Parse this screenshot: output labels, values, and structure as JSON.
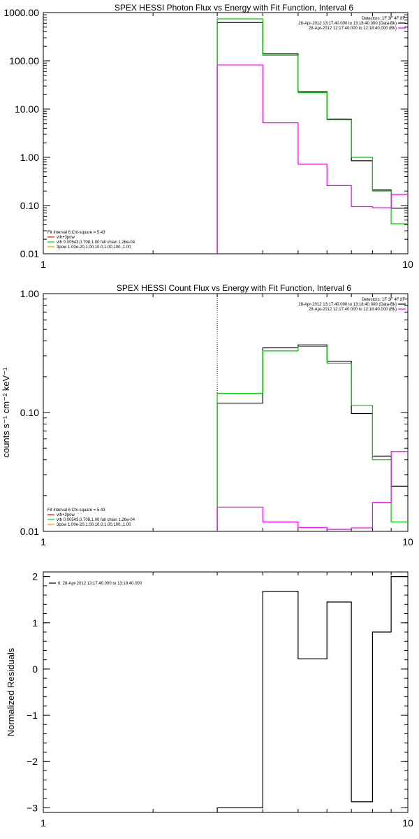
{
  "chart_data": [
    {
      "type": "line",
      "title": "SPEX HESSI Photon Flux vs Energy with Fit Function, Interval 6",
      "ylabel": "",
      "xscale": "log",
      "yscale": "log",
      "xlim": [
        1,
        10
      ],
      "ylim": [
        0.01,
        1000
      ],
      "x_ticks": [
        "1",
        "10"
      ],
      "y_ticks": [
        "0.01",
        "0.10",
        "1.00",
        "10.00",
        "100.00",
        "1000.00"
      ],
      "vline_x": 3.0,
      "legend_top_right": [
        {
          "text": "Detectors: 1F 3F 4F 8F",
          "color": ""
        },
        {
          "text": "28-Apr-2012 13:17:40.000 to 13:18:40.000 (Data-Bk)",
          "color": "#000000"
        },
        {
          "text": "28-Apr-2012 12:17:40.000 to 12:18:40.000 (Bk)",
          "color": "#ff00ff"
        }
      ],
      "legend_bottom_left": [
        {
          "text": "Fit Interval 6   Chi-square = 5.43",
          "color": ""
        },
        {
          "text": "vth+3pow",
          "color": "#ff0000"
        },
        {
          "text": "vth 0.00543,0.708,1.00  full chian 1.26e-04",
          "color": "#00dd00"
        },
        {
          "text": "3pow 1.00e-20,1.00,10.0,1.00,100.,1.00",
          "color": "#ff9900"
        }
      ],
      "bin_edges": [
        3.0,
        4.0,
        5.0,
        6.0,
        7.0,
        8.0,
        9.0,
        10.0
      ],
      "series": [
        {
          "name": "28-Apr-2012 13:17:40.000 to 13:18:40.000 (Data-Bk)",
          "color": "#000000",
          "values": [
            620,
            140,
            23,
            6.2,
            0.85,
            0.21,
            0.088
          ]
        },
        {
          "name": "",
          "color": "#00cc00",
          "values": [
            740,
            130,
            22,
            6.0,
            1.0,
            0.2,
            0.042
          ]
        },
        {
          "name": "28-Apr-2012 12:17:40.000 to 12:18:40.000 (Bk)",
          "color": "#ff00ff",
          "values": [
            82,
            5.2,
            0.72,
            0.26,
            0.095,
            0.09,
            0.17
          ]
        }
      ]
    },
    {
      "type": "line",
      "title": "SPEX HESSI Count Flux vs Energy with Fit Function, Interval 6",
      "ylabel": "counts s⁻¹ cm⁻² keV⁻¹",
      "xscale": "log",
      "yscale": "log",
      "xlim": [
        1,
        10
      ],
      "ylim": [
        0.01,
        1.0
      ],
      "x_ticks": [
        "1",
        "10"
      ],
      "y_ticks": [
        "0.01",
        "0.10",
        "1.00"
      ],
      "vline_x": 3.0,
      "legend_top_right": [
        {
          "text": "Detectors: 1F 3F 4F 8F",
          "color": ""
        },
        {
          "text": "28-Apr-2012 13:17:40.000 to 13:18:40.000 (Data-Bk)",
          "color": "#000000"
        },
        {
          "text": "28-Apr-2012 12:17:40.000 to 12:18:40.000 (Bk)",
          "color": "#ff00ff"
        }
      ],
      "legend_bottom_left": [
        {
          "text": "Fit Interval 6   Chi-square = 5.43",
          "color": ""
        },
        {
          "text": "vth+3pow",
          "color": "#ff0000"
        },
        {
          "text": "vth 0.00543,0.708,1.00  full chian 1.26e-04",
          "color": "#00dd00"
        },
        {
          "text": "3pow 1.00e-20,1.00,10.0,1.00,100.,1.00",
          "color": "#ff9900"
        }
      ],
      "bin_edges": [
        3.0,
        4.0,
        5.0,
        6.0,
        7.0,
        8.0,
        9.0,
        10.0
      ],
      "series": [
        {
          "name": "28-Apr-2012 13:17:40.000 to 13:18:40.000 (Data-Bk)",
          "color": "#000000",
          "values": [
            0.12,
            0.35,
            0.37,
            0.27,
            0.098,
            0.043,
            0.024
          ]
        },
        {
          "name": "",
          "color": "#00cc00",
          "values": [
            0.145,
            0.33,
            0.36,
            0.26,
            0.115,
            0.04,
            0.012
          ]
        },
        {
          "name": "28-Apr-2012 12:17:40.000 to 12:18:40.000 (Bk)",
          "color": "#ff00ff",
          "values": [
            0.016,
            0.012,
            0.0108,
            0.0104,
            0.0107,
            0.0175,
            0.047
          ]
        }
      ]
    },
    {
      "type": "line",
      "title": "",
      "ylabel": "Normalized Residuals",
      "xscale": "log",
      "yscale": "linear",
      "xlim": [
        1,
        10
      ],
      "ylim": [
        -3.1,
        2.1
      ],
      "x_ticks": [
        "1",
        "10"
      ],
      "y_ticks": [
        "-3",
        "-2",
        "-1",
        "0",
        "1",
        "2"
      ],
      "legend_top_left": [
        {
          "text": "6. 28-Apr-2012 13:17:40.000 to 13:18:40.000",
          "color": "#000000"
        }
      ],
      "bin_edges": [
        3.0,
        4.0,
        5.0,
        6.0,
        7.0,
        8.0,
        9.0,
        10.0
      ],
      "series": [
        {
          "name": "",
          "color": "#000000",
          "values": [
            -3.0,
            1.68,
            0.22,
            1.45,
            -2.87,
            0.8,
            2.0
          ]
        }
      ]
    }
  ]
}
